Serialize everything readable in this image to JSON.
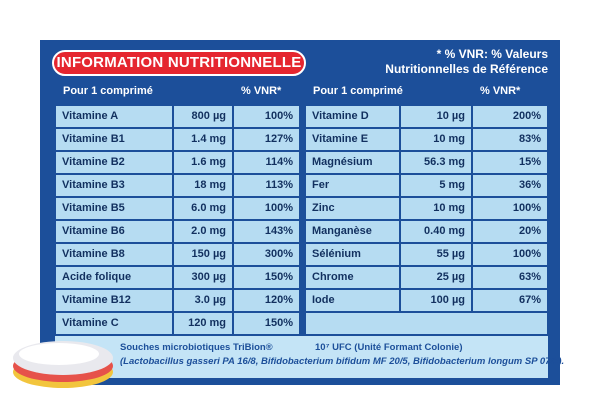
{
  "header": {
    "title": "INFORMATION NUTRITIONNELLE",
    "note_line1": "* % VNR: % Valeurs",
    "note_line2": "Nutritionnelles de Référence"
  },
  "left_table": {
    "columns": [
      "Pour 1 comprimé",
      "% VNR*"
    ],
    "rows": [
      [
        "Vitamine A",
        "800 µg",
        "100%"
      ],
      [
        "Vitamine B1",
        "1.4 mg",
        "127%"
      ],
      [
        "Vitamine B2",
        "1.6 mg",
        "114%"
      ],
      [
        "Vitamine B3",
        "18 mg",
        "113%"
      ],
      [
        "Vitamine B5",
        "6.0 mg",
        "100%"
      ],
      [
        "Vitamine B6",
        "2.0 mg",
        "143%"
      ],
      [
        "Vitamine B8",
        "150 µg",
        "300%"
      ],
      [
        "Acide folique",
        "300 µg",
        "150%"
      ],
      [
        "Vitamine B12",
        "3.0 µg",
        "120%"
      ],
      [
        "Vitamine C",
        "120 mg",
        "150%"
      ]
    ]
  },
  "right_table": {
    "columns": [
      "Pour 1 comprimé",
      "% VNR*"
    ],
    "rows": [
      [
        "Vitamine D",
        "10 µg",
        "200%"
      ],
      [
        "Vitamine E",
        "10 mg",
        "83%"
      ],
      [
        "Magnésium",
        "56.3 mg",
        "15%"
      ],
      [
        "Fer",
        "5 mg",
        "36%"
      ],
      [
        "Zinc",
        "10 mg",
        "100%"
      ],
      [
        "Manganèse",
        "0.40 mg",
        "20%"
      ],
      [
        "Sélénium",
        "55 µg",
        "100%"
      ],
      [
        "Chrome",
        "25 µg",
        "63%"
      ],
      [
        "Iode",
        "100 µg",
        "67%"
      ]
    ]
  },
  "footer": {
    "strain_label": "Souches microbiotiques TriBion®",
    "ufc": "10⁷ UFC (Unité Formant Colonie)",
    "strains": "(Lactobacillus gasseri PA 16/8, Bifidobacterium bifidum MF 20/5, Bifidobacterium longum SP 07/3)."
  }
}
